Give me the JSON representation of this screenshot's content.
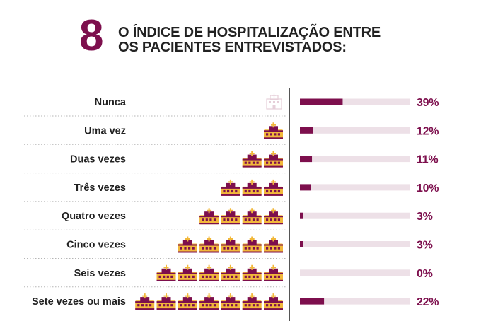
{
  "header": {
    "number": "8",
    "title_line1": "O ÍNDICE DE HOSPITALIZAÇÃO ENTRE",
    "title_line2": "OS PACIENTES ENTREVISTADOS:"
  },
  "colors": {
    "accent": "#7d0f4d",
    "track": "#ede0e7",
    "icon_fill": "#f2b83b",
    "icon_faint": "#e6cfd9",
    "text": "#222222"
  },
  "icon_name": "hospital-icon",
  "chart_data": {
    "type": "bar",
    "categories": [
      "Nunca",
      "Uma vez",
      "Duas vezes",
      "Três vezes",
      "Quatro vezes",
      "Cinco vezes",
      "Seis vezes",
      "Sete vezes ou mais"
    ],
    "values": [
      39,
      12,
      11,
      10,
      3,
      3,
      0,
      22
    ],
    "value_labels": [
      "39%",
      "12%",
      "11%",
      "10%",
      "3%",
      "3%",
      "0%",
      "22%"
    ],
    "icon_counts": [
      0,
      1,
      2,
      3,
      4,
      5,
      6,
      7
    ],
    "unit": "%",
    "xlim": [
      0,
      100
    ],
    "grid": false,
    "legend": "none"
  }
}
